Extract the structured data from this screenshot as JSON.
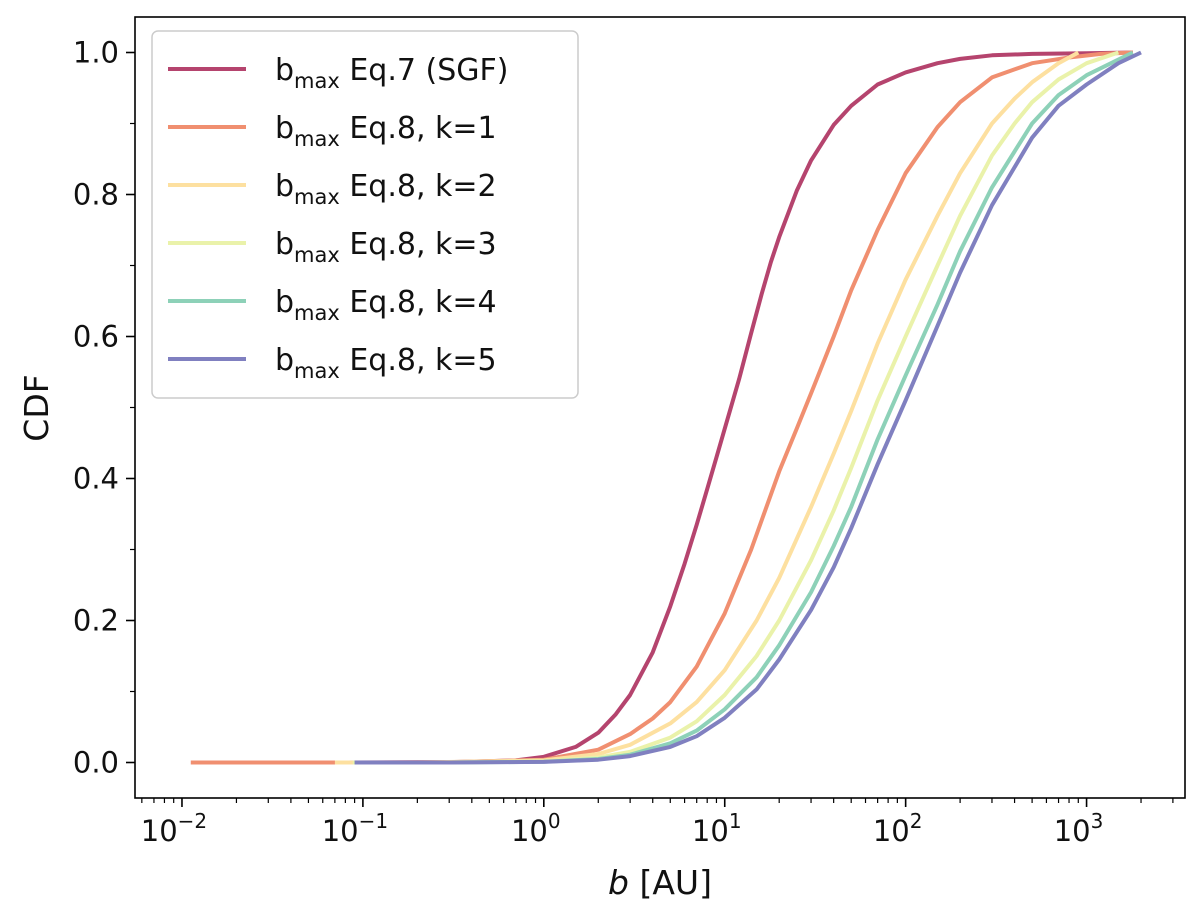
{
  "chart_data": {
    "type": "line",
    "xscale": "log",
    "xlim": [
      0.0055,
      3500
    ],
    "ylim": [
      -0.05,
      1.05
    ],
    "grid": false,
    "legend_placement": "top-left",
    "xlabel": {
      "var": "b",
      "unit": " [AU]"
    },
    "ylabel": "CDF",
    "xticks": [
      {
        "value": 0.01,
        "mantissa": "10",
        "exponent": "−2"
      },
      {
        "value": 0.1,
        "mantissa": "10",
        "exponent": "−1"
      },
      {
        "value": 1,
        "mantissa": "10",
        "exponent": "0"
      },
      {
        "value": 10,
        "mantissa": "10",
        "exponent": "1"
      },
      {
        "value": 100,
        "mantissa": "10",
        "exponent": "2"
      },
      {
        "value": 1000,
        "mantissa": "10",
        "exponent": "3"
      }
    ],
    "yticks": [
      {
        "value": 0.0,
        "label": "0.0"
      },
      {
        "value": 0.2,
        "label": "0.2"
      },
      {
        "value": 0.4,
        "label": "0.4"
      },
      {
        "value": 0.6,
        "label": "0.6"
      },
      {
        "value": 0.8,
        "label": "0.8"
      },
      {
        "value": 1.0,
        "label": "1.0"
      }
    ],
    "series": [
      {
        "base": "b",
        "sub": "max",
        "rest": " Eq.7 (SGF)",
        "color": "#b5446e",
        "x": [
          0.0112,
          0.08,
          0.3,
          0.7,
          1.0,
          1.5,
          2.0,
          2.5,
          3,
          4,
          5,
          6,
          7,
          8,
          9,
          10,
          12,
          14,
          16,
          18,
          20,
          25,
          30,
          40,
          50,
          70,
          100,
          150,
          200,
          300,
          500,
          1000,
          1800
        ],
        "y": [
          0.0,
          0.0,
          0.0005,
          0.003,
          0.008,
          0.022,
          0.042,
          0.068,
          0.095,
          0.155,
          0.22,
          0.28,
          0.335,
          0.385,
          0.43,
          0.47,
          0.54,
          0.605,
          0.66,
          0.705,
          0.74,
          0.805,
          0.848,
          0.898,
          0.925,
          0.955,
          0.972,
          0.985,
          0.991,
          0.996,
          0.998,
          0.999,
          1.0
        ]
      },
      {
        "base": "b",
        "sub": "max",
        "rest": " Eq.8, k=1",
        "color": "#f08f70",
        "x": [
          0.0112,
          0.09,
          0.3,
          1.0,
          2.0,
          3,
          4,
          5,
          7,
          10,
          14,
          20,
          25,
          30,
          40,
          50,
          70,
          100,
          150,
          200,
          300,
          500,
          800,
          1200,
          1800
        ],
        "y": [
          0.0,
          0.0,
          0.0003,
          0.004,
          0.018,
          0.04,
          0.062,
          0.085,
          0.135,
          0.21,
          0.3,
          0.41,
          0.47,
          0.52,
          0.6,
          0.665,
          0.75,
          0.83,
          0.895,
          0.93,
          0.965,
          0.985,
          0.993,
          0.998,
          1.0
        ]
      },
      {
        "base": "b",
        "sub": "max",
        "rest": " Eq.8, k=2",
        "color": "#fde0a0",
        "x": [
          0.07,
          0.2,
          1.0,
          2.0,
          3,
          5,
          7,
          10,
          15,
          20,
          30,
          40,
          50,
          70,
          100,
          150,
          200,
          300,
          400,
          500,
          700,
          900
        ],
        "y": [
          0.0,
          0.0,
          0.003,
          0.012,
          0.025,
          0.055,
          0.085,
          0.13,
          0.2,
          0.26,
          0.36,
          0.435,
          0.495,
          0.59,
          0.68,
          0.77,
          0.83,
          0.9,
          0.935,
          0.958,
          0.985,
          1.0
        ]
      },
      {
        "base": "b",
        "sub": "max",
        "rest": " Eq.8, k=3",
        "color": "#eaf2aa",
        "x": [
          0.088,
          0.3,
          1.0,
          2.0,
          3,
          5,
          7,
          10,
          15,
          20,
          30,
          40,
          50,
          70,
          100,
          150,
          200,
          300,
          400,
          500,
          700,
          1000,
          1500
        ],
        "y": [
          0.0,
          0.0,
          0.0015,
          0.007,
          0.015,
          0.035,
          0.058,
          0.095,
          0.15,
          0.2,
          0.285,
          0.355,
          0.415,
          0.51,
          0.6,
          0.7,
          0.77,
          0.855,
          0.9,
          0.93,
          0.962,
          0.985,
          1.0
        ]
      },
      {
        "base": "b",
        "sub": "max",
        "rest": " Eq.8, k=4",
        "color": "#8dd1b8",
        "x": [
          0.09,
          0.3,
          1.0,
          2.0,
          3,
          5,
          7,
          10,
          15,
          20,
          30,
          40,
          50,
          70,
          100,
          150,
          200,
          300,
          500,
          700,
          1000,
          1500,
          1800
        ],
        "y": [
          0.0,
          0.0,
          0.001,
          0.005,
          0.011,
          0.027,
          0.045,
          0.075,
          0.12,
          0.165,
          0.24,
          0.305,
          0.36,
          0.455,
          0.545,
          0.645,
          0.72,
          0.81,
          0.9,
          0.94,
          0.968,
          0.99,
          1.0
        ]
      },
      {
        "base": "b",
        "sub": "max",
        "rest": " Eq.8, k=5",
        "color": "#8080c0",
        "x": [
          0.09,
          0.3,
          1.0,
          2.0,
          3,
          5,
          7,
          10,
          15,
          20,
          30,
          40,
          50,
          70,
          100,
          150,
          200,
          300,
          500,
          700,
          1000,
          1500,
          2000
        ],
        "y": [
          0.0,
          0.0,
          0.0008,
          0.004,
          0.009,
          0.022,
          0.037,
          0.063,
          0.103,
          0.145,
          0.215,
          0.275,
          0.33,
          0.42,
          0.51,
          0.615,
          0.69,
          0.785,
          0.88,
          0.925,
          0.955,
          0.985,
          1.0
        ]
      }
    ]
  }
}
